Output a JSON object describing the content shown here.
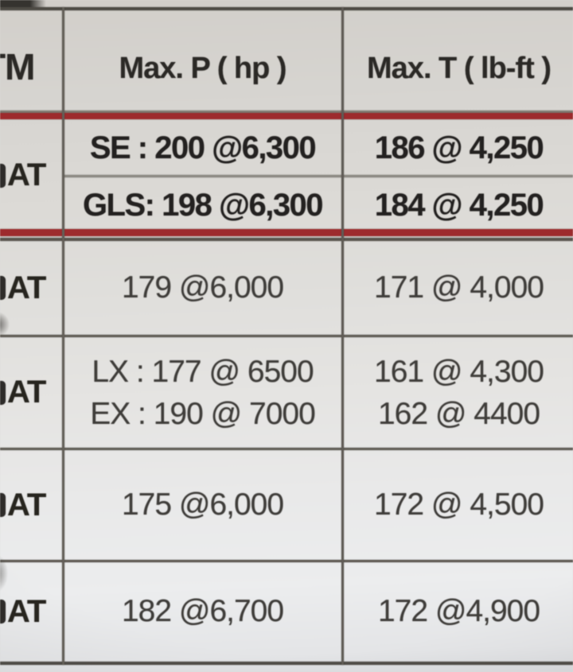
{
  "colors": {
    "accent_red": "#9d2b2d",
    "border_dark": "#504d48",
    "divider_gray": "#8c8982",
    "text_bold": "#232120",
    "text_regular": "#3f3d3a",
    "background_top": "#d2cfca",
    "background_bottom": "#d9dbde"
  },
  "chart_data": {
    "type": "table",
    "columns": [
      "TM",
      "Max. P ( hp )",
      "Max. T ( lb-ft )"
    ],
    "rows": [
      {
        "tm": "AT",
        "max_p": [
          "SE : 200 @6,300",
          "GLS: 198 @6,300"
        ],
        "max_t": [
          "186 @ 4,250",
          "184 @ 4,250"
        ],
        "bold": true
      },
      {
        "tm": "AT",
        "max_p": [
          "179 @6,000"
        ],
        "max_t": [
          "171 @ 4,000"
        ],
        "bold": false
      },
      {
        "tm": "AT",
        "max_p": [
          "LX : 177 @ 6500",
          "EX : 190 @ 7000"
        ],
        "max_t": [
          "161 @ 4,300",
          "162 @ 4400"
        ],
        "bold": false
      },
      {
        "tm": "AT",
        "max_p": [
          "175 @6,000"
        ],
        "max_t": [
          "172 @ 4,500"
        ],
        "bold": false
      },
      {
        "tm": "AT",
        "max_p": [
          "182 @6,700"
        ],
        "max_t": [
          "172 @4,900"
        ],
        "bold": false
      }
    ],
    "layout": {
      "left_column_clipped_at_image_edge": true,
      "right_column_clipped_at_image_edge": true,
      "red_separator_below": [
        "header",
        "row-1"
      ],
      "row1_has_internal_gray_divider": true,
      "grid": "dark gray rules between all rows and columns"
    }
  }
}
